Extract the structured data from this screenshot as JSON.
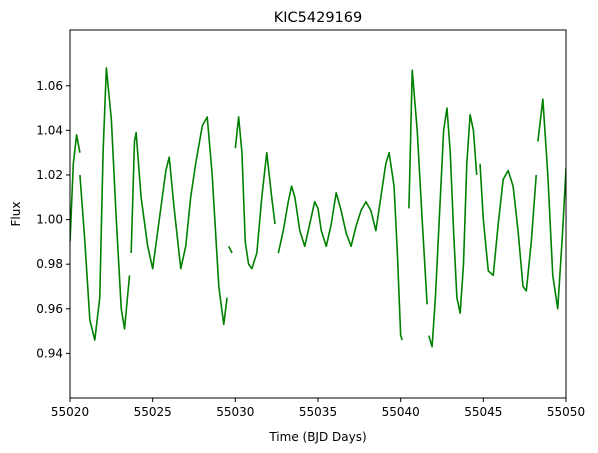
{
  "chart_data": {
    "type": "line",
    "title": "KIC5429169",
    "xlabel": "Time (BJD Days)",
    "ylabel": "Flux",
    "xlim": [
      55020,
      55050
    ],
    "ylim": [
      0.92,
      1.085
    ],
    "xticks": [
      55020,
      55025,
      55030,
      55035,
      55040,
      55045,
      55050
    ],
    "xtick_labels": [
      "55020",
      "55025",
      "55030",
      "55035",
      "55040",
      "55045",
      "55050"
    ],
    "yticks": [
      0.94,
      0.96,
      0.98,
      1.0,
      1.02,
      1.04,
      1.06
    ],
    "ytick_labels": [
      "0.94",
      "0.96",
      "0.98",
      "1.00",
      "1.02",
      "1.04",
      "1.06"
    ],
    "grid": false,
    "color": "#008000",
    "series": [
      {
        "segments": [
          [
            [
              55020.0,
              0.99
            ],
            [
              55020.2,
              1.025
            ],
            [
              55020.4,
              1.038
            ],
            [
              55020.6,
              1.03
            ]
          ],
          [
            [
              55020.6,
              1.02
            ],
            [
              55020.9,
              0.99
            ],
            [
              55021.2,
              0.955
            ],
            [
              55021.5,
              0.946
            ],
            [
              55021.8,
              0.965
            ],
            [
              55022.0,
              1.03
            ],
            [
              55022.2,
              1.068
            ],
            [
              55022.5,
              1.045
            ],
            [
              55022.8,
              1.0
            ],
            [
              55023.1,
              0.96
            ],
            [
              55023.3,
              0.951
            ],
            [
              55023.6,
              0.975
            ]
          ],
          [
            [
              55023.7,
              0.985
            ],
            [
              55023.9,
              1.035
            ],
            [
              55024.0,
              1.039
            ],
            [
              55024.3,
              1.01
            ],
            [
              55024.7,
              0.988
            ],
            [
              55025.0,
              0.978
            ],
            [
              55025.4,
              1.0
            ],
            [
              55025.8,
              1.022
            ],
            [
              55026.0,
              1.028
            ],
            [
              55026.3,
              1.005
            ],
            [
              55026.7,
              0.978
            ],
            [
              55027.0,
              0.988
            ],
            [
              55027.3,
              1.01
            ],
            [
              55027.6,
              1.025
            ],
            [
              55028.0,
              1.042
            ],
            [
              55028.3,
              1.046
            ],
            [
              55028.6,
              1.02
            ],
            [
              55029.0,
              0.97
            ],
            [
              55029.3,
              0.953
            ],
            [
              55029.5,
              0.965
            ]
          ],
          [
            [
              55029.6,
              0.988
            ],
            [
              55029.8,
              0.985
            ]
          ],
          [
            [
              55030.0,
              1.032
            ],
            [
              55030.2,
              1.046
            ],
            [
              55030.4,
              1.03
            ],
            [
              55030.6,
              0.99
            ],
            [
              55030.8,
              0.98
            ],
            [
              55031.0,
              0.978
            ],
            [
              55031.3,
              0.985
            ],
            [
              55031.6,
              1.01
            ],
            [
              55031.9,
              1.03
            ],
            [
              55032.2,
              1.01
            ],
            [
              55032.4,
              0.998
            ]
          ],
          [
            [
              55032.6,
              0.985
            ],
            [
              55032.9,
              0.995
            ],
            [
              55033.2,
              1.008
            ],
            [
              55033.4,
              1.015
            ],
            [
              55033.6,
              1.01
            ],
            [
              55033.9,
              0.995
            ],
            [
              55034.2,
              0.988
            ],
            [
              55034.5,
              0.998
            ],
            [
              55034.8,
              1.008
            ],
            [
              55035.0,
              1.005
            ],
            [
              55035.2,
              0.995
            ],
            [
              55035.5,
              0.988
            ],
            [
              55035.8,
              0.998
            ],
            [
              55036.1,
              1.012
            ],
            [
              55036.4,
              1.004
            ],
            [
              55036.7,
              0.994
            ],
            [
              55037.0,
              0.988
            ],
            [
              55037.3,
              0.997
            ],
            [
              55037.6,
              1.004
            ],
            [
              55037.9,
              1.008
            ],
            [
              55038.2,
              1.004
            ],
            [
              55038.5,
              0.995
            ],
            [
              55038.8,
              1.01
            ],
            [
              55039.1,
              1.025
            ],
            [
              55039.3,
              1.03
            ],
            [
              55039.6,
              1.015
            ],
            [
              55039.8,
              0.985
            ],
            [
              55040.0,
              0.948
            ],
            [
              55040.1,
              0.946
            ]
          ],
          [
            [
              55040.5,
              1.005
            ],
            [
              55040.7,
              1.067
            ],
            [
              55041.0,
              1.04
            ],
            [
              55041.3,
              1.0
            ],
            [
              55041.6,
              0.962
            ]
          ],
          [
            [
              55041.7,
              0.948
            ],
            [
              55041.9,
              0.943
            ],
            [
              55042.1,
              0.965
            ],
            [
              55042.4,
              1.01
            ],
            [
              55042.6,
              1.04
            ],
            [
              55042.8,
              1.05
            ],
            [
              55043.0,
              1.03
            ],
            [
              55043.2,
              0.995
            ],
            [
              55043.4,
              0.965
            ],
            [
              55043.6,
              0.958
            ],
            [
              55043.8,
              0.98
            ],
            [
              55044.0,
              1.025
            ],
            [
              55044.2,
              1.047
            ],
            [
              55044.4,
              1.04
            ],
            [
              55044.6,
              1.02
            ]
          ],
          [
            [
              55044.8,
              1.025
            ],
            [
              55045.0,
              1.0
            ],
            [
              55045.3,
              0.977
            ],
            [
              55045.6,
              0.975
            ],
            [
              55045.9,
              0.998
            ],
            [
              55046.2,
              1.018
            ],
            [
              55046.5,
              1.022
            ],
            [
              55046.8,
              1.015
            ],
            [
              55047.1,
              0.995
            ],
            [
              55047.4,
              0.97
            ],
            [
              55047.6,
              0.968
            ],
            [
              55047.9,
              0.99
            ],
            [
              55048.2,
              1.02
            ]
          ],
          [
            [
              55048.3,
              1.035
            ],
            [
              55048.6,
              1.054
            ],
            [
              55048.9,
              1.02
            ],
            [
              55049.2,
              0.975
            ],
            [
              55049.5,
              0.96
            ],
            [
              55049.8,
              0.995
            ],
            [
              55050.0,
              1.023
            ]
          ]
        ]
      }
    ]
  }
}
